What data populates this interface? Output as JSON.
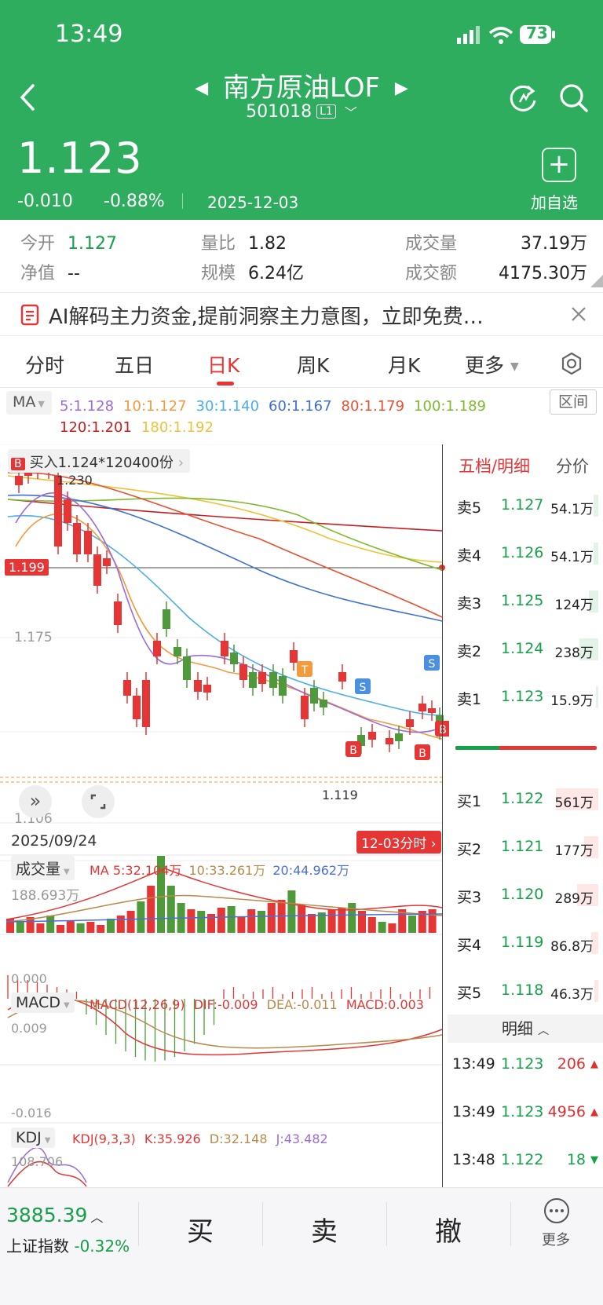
{
  "status": {
    "time": "13:49",
    "battery": "73"
  },
  "header": {
    "title": "南方原油LOF",
    "code": "501018",
    "level": "L1",
    "price": "1.123",
    "change": "-0.010",
    "change_pct": "-0.88%",
    "date": "2025-12-03",
    "add_label": "加自选"
  },
  "stats": {
    "open_label": "今开",
    "open": "1.127",
    "nav_label": "净值",
    "nav": "--",
    "vol_ratio_label": "量比",
    "vol_ratio": "1.82",
    "scale_label": "规模",
    "scale": "6.24亿",
    "volume_label": "成交量",
    "volume": "37.19万",
    "amount_label": "成交额",
    "amount": "4175.30万"
  },
  "banner": {
    "text": "AI解码主力资金,提前洞察主力意图，立即免费…"
  },
  "tabs": [
    "分时",
    "五日",
    "日K",
    "周K",
    "月K",
    "更多"
  ],
  "active_tab": "日K",
  "ma": {
    "label": "MA",
    "items": [
      {
        "text": "5:1.128",
        "color": "#9b6cd9"
      },
      {
        "text": "10:1.127",
        "color": "#f39a3d"
      },
      {
        "text": "30:1.140",
        "color": "#4aaee8"
      },
      {
        "text": "60:1.167",
        "color": "#3d6fd8"
      },
      {
        "text": "80:1.179",
        "color": "#e8512f"
      },
      {
        "text": "100:1.189",
        "color": "#7dbb2d"
      },
      {
        "text": "120:1.201",
        "color": "#c81d1d"
      },
      {
        "text": "180:1.192",
        "color": "#f0c23a"
      }
    ],
    "range_btn": "区间"
  },
  "kline": {
    "trade_note": "买入1.124*120400份",
    "high_label": "1.230",
    "ref_price": "1.199",
    "mid_axis": "1.175",
    "low_axis": "1.106",
    "low_label": "1.119",
    "start_date": "2025/09/24",
    "intraday_btn": "12-03分时"
  },
  "volume_panel": {
    "label": "成交量",
    "ma5": "MA 5:32.104万",
    "ma10": "10:33.261万",
    "ma20": "20:44.962万",
    "max": "188.693万",
    "zero": "0.000"
  },
  "macd_panel": {
    "label": "MACD",
    "params": "MACD(12,26,9)",
    "dif": "DIF:-0.009",
    "dea": "DEA:-0.011",
    "macd": "MACD:0.003",
    "top": "0.009",
    "bottom": "-0.016"
  },
  "kdj_panel": {
    "label": "KDJ",
    "params": "KDJ(9,3,3)",
    "k": "K:35.926",
    "d": "D:32.148",
    "j": "J:43.482",
    "top": "108.706"
  },
  "orderbook": {
    "title": "五档/明细",
    "tab2": "分价",
    "sells": [
      {
        "label": "卖5",
        "price": "1.127",
        "vol": "54.1万",
        "bar": 0.1
      },
      {
        "label": "卖4",
        "price": "1.126",
        "vol": "54.1万",
        "bar": 0.1
      },
      {
        "label": "卖3",
        "price": "1.125",
        "vol": "124万",
        "bar": 0.2
      },
      {
        "label": "卖2",
        "price": "1.124",
        "vol": "238万",
        "bar": 0.4
      },
      {
        "label": "卖1",
        "price": "1.123",
        "vol": "15.9万",
        "bar": 0.05
      }
    ],
    "buys": [
      {
        "label": "买1",
        "price": "1.122",
        "vol": "561万",
        "bar": 0.9
      },
      {
        "label": "买2",
        "price": "1.121",
        "vol": "177万",
        "bar": 0.3
      },
      {
        "label": "买3",
        "price": "1.120",
        "vol": "289万",
        "bar": 0.45
      },
      {
        "label": "买4",
        "price": "1.119",
        "vol": "86.8万",
        "bar": 0.15
      },
      {
        "label": "买5",
        "price": "1.118",
        "vol": "46.3万",
        "bar": 0.08
      }
    ],
    "detail_title": "明细",
    "details": [
      {
        "time": "13:49",
        "price": "1.123",
        "vol": "206",
        "dir": "up"
      },
      {
        "time": "13:49",
        "price": "1.123",
        "vol": "4956",
        "dir": "up"
      },
      {
        "time": "13:48",
        "price": "1.122",
        "vol": "18",
        "dir": "down"
      }
    ]
  },
  "bottom": {
    "index_value": "3885.39",
    "index_name": "上证指数",
    "index_chg": "-0.32%",
    "buy": "买",
    "sell": "卖",
    "cancel": "撤",
    "more": "更多"
  },
  "colors": {
    "header_green": "#2fad5f",
    "up_red": "#e02f2f",
    "down_green": "#15a04a"
  }
}
